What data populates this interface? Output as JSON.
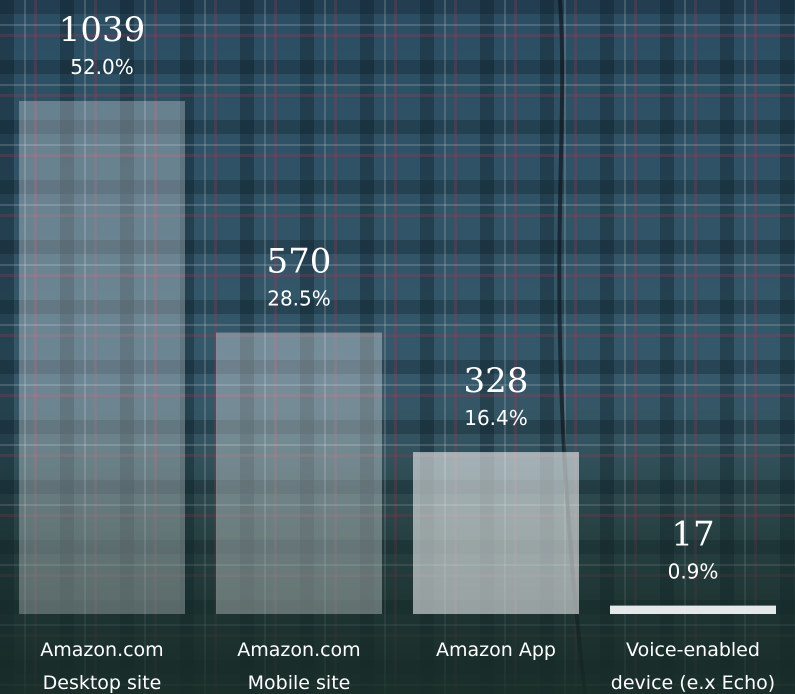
{
  "chart_data": {
    "type": "bar",
    "categories": [
      "Amazon.com\nDesktop site",
      "Amazon.com\nMobile site",
      "Amazon App",
      "Voice-enabled\ndevice (e.x Echo)"
    ],
    "values": [
      1039,
      570,
      328,
      17
    ],
    "share_labels": [
      "52.0%",
      "28.5%",
      "16.4%",
      "0.9%"
    ],
    "colors": [
      "rgba(255,255,255,0.28)",
      "rgba(255,255,255,0.32)",
      "rgba(255,255,255,0.55)",
      "rgba(240,242,242,0.95)"
    ],
    "ylim": [
      0,
      1039
    ]
  }
}
